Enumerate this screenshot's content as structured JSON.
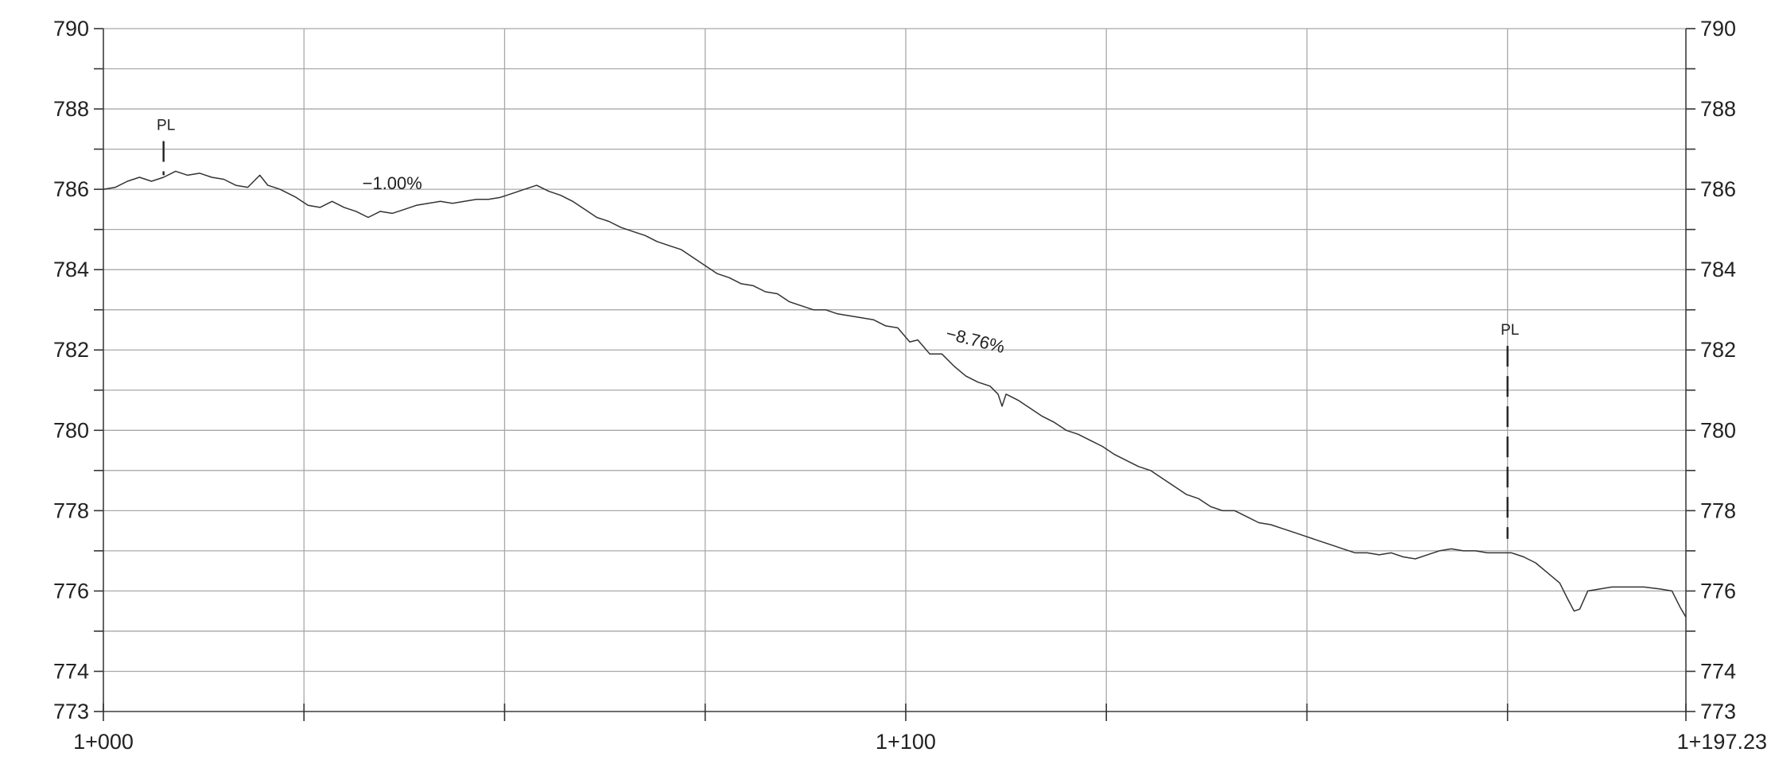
{
  "chart_data": {
    "type": "line",
    "title": "",
    "xlabel": "",
    "ylabel": "",
    "xlim": [
      1000,
      1197.23
    ],
    "ylim": [
      773,
      790
    ],
    "x_grid": [
      1000,
      1025,
      1050,
      1075,
      1100,
      1125,
      1150,
      1175,
      1197.23
    ],
    "x_tick_labels": [
      {
        "x": 1000,
        "label": "1+000"
      },
      {
        "x": 1100,
        "label": "1+100"
      },
      {
        "x": 1197.23,
        "label": "1+197.23"
      }
    ],
    "y_tick_labels": [
      {
        "y": 790,
        "label": "790"
      },
      {
        "y": 788,
        "label": "788"
      },
      {
        "y": 786,
        "label": "786"
      },
      {
        "y": 784,
        "label": "784"
      },
      {
        "y": 782,
        "label": "782"
      },
      {
        "y": 780,
        "label": "780"
      },
      {
        "y": 778,
        "label": "778"
      },
      {
        "y": 776,
        "label": "776"
      },
      {
        "y": 774,
        "label": "774"
      },
      {
        "y": 773,
        "label": "773"
      }
    ],
    "grid": true,
    "series": [
      {
        "points": [
          [
            1000.0,
            786.0
          ],
          [
            1001.5,
            786.05
          ],
          [
            1003.0,
            786.2
          ],
          [
            1004.5,
            786.3
          ],
          [
            1006.0,
            786.2
          ],
          [
            1007.5,
            786.3
          ],
          [
            1009.0,
            786.45
          ],
          [
            1010.5,
            786.35
          ],
          [
            1012.0,
            786.4
          ],
          [
            1013.5,
            786.3
          ],
          [
            1015.0,
            786.25
          ],
          [
            1016.5,
            786.1
          ],
          [
            1018.0,
            786.05
          ],
          [
            1019.5,
            786.35
          ],
          [
            1020.5,
            786.1
          ],
          [
            1022.0,
            786.0
          ],
          [
            1024.0,
            785.8
          ],
          [
            1025.5,
            785.6
          ],
          [
            1027.0,
            785.55
          ],
          [
            1028.5,
            785.7
          ],
          [
            1030.0,
            785.55
          ],
          [
            1031.5,
            785.45
          ],
          [
            1033.0,
            785.3
          ],
          [
            1034.5,
            785.45
          ],
          [
            1036.0,
            785.4
          ],
          [
            1037.5,
            785.5
          ],
          [
            1039.0,
            785.6
          ],
          [
            1040.5,
            785.65
          ],
          [
            1042.0,
            785.7
          ],
          [
            1043.5,
            785.65
          ],
          [
            1045.0,
            785.7
          ],
          [
            1046.5,
            785.75
          ],
          [
            1048.0,
            785.75
          ],
          [
            1049.5,
            785.8
          ],
          [
            1051.0,
            785.9
          ],
          [
            1052.5,
            786.0
          ],
          [
            1054.0,
            786.1
          ],
          [
            1055.5,
            785.95
          ],
          [
            1057.0,
            785.85
          ],
          [
            1058.5,
            785.7
          ],
          [
            1060.0,
            785.5
          ],
          [
            1061.5,
            785.3
          ],
          [
            1063.0,
            785.2
          ],
          [
            1064.5,
            785.05
          ],
          [
            1066.0,
            784.95
          ],
          [
            1067.5,
            784.85
          ],
          [
            1069.0,
            784.7
          ],
          [
            1070.5,
            784.6
          ],
          [
            1072.0,
            784.5
          ],
          [
            1073.5,
            784.3
          ],
          [
            1075.0,
            784.1
          ],
          [
            1076.5,
            783.9
          ],
          [
            1078.0,
            783.8
          ],
          [
            1079.5,
            783.65
          ],
          [
            1081.0,
            783.6
          ],
          [
            1082.5,
            783.45
          ],
          [
            1084.0,
            783.4
          ],
          [
            1085.5,
            783.2
          ],
          [
            1087.0,
            783.1
          ],
          [
            1088.5,
            783.0
          ],
          [
            1090.0,
            783.0
          ],
          [
            1091.5,
            782.9
          ],
          [
            1093.0,
            782.85
          ],
          [
            1094.5,
            782.8
          ],
          [
            1096.0,
            782.75
          ],
          [
            1097.5,
            782.6
          ],
          [
            1099.0,
            782.55
          ],
          [
            1100.5,
            782.2
          ],
          [
            1101.5,
            782.25
          ],
          [
            1103.0,
            781.9
          ],
          [
            1104.5,
            781.9
          ],
          [
            1106.0,
            781.6
          ],
          [
            1107.5,
            781.35
          ],
          [
            1109.0,
            781.2
          ],
          [
            1110.5,
            781.1
          ],
          [
            1111.5,
            780.9
          ],
          [
            1112.0,
            780.6
          ],
          [
            1112.5,
            780.9
          ],
          [
            1114.0,
            780.75
          ],
          [
            1115.5,
            780.55
          ],
          [
            1117.0,
            780.35
          ],
          [
            1118.5,
            780.2
          ],
          [
            1120.0,
            780.0
          ],
          [
            1121.5,
            779.9
          ],
          [
            1123.0,
            779.75
          ],
          [
            1124.5,
            779.6
          ],
          [
            1126.0,
            779.4
          ],
          [
            1127.5,
            779.25
          ],
          [
            1129.0,
            779.1
          ],
          [
            1130.5,
            779.0
          ],
          [
            1132.0,
            778.8
          ],
          [
            1133.5,
            778.6
          ],
          [
            1135.0,
            778.4
          ],
          [
            1136.5,
            778.3
          ],
          [
            1138.0,
            778.1
          ],
          [
            1139.5,
            778.0
          ],
          [
            1141.0,
            778.0
          ],
          [
            1142.5,
            777.85
          ],
          [
            1144.0,
            777.7
          ],
          [
            1145.5,
            777.65
          ],
          [
            1147.0,
            777.55
          ],
          [
            1148.5,
            777.45
          ],
          [
            1150.0,
            777.35
          ],
          [
            1151.5,
            777.25
          ],
          [
            1153.0,
            777.15
          ],
          [
            1154.5,
            777.05
          ],
          [
            1156.0,
            776.95
          ],
          [
            1157.5,
            776.95
          ],
          [
            1159.0,
            776.9
          ],
          [
            1160.5,
            776.95
          ],
          [
            1162.0,
            776.85
          ],
          [
            1163.5,
            776.8
          ],
          [
            1165.0,
            776.9
          ],
          [
            1166.5,
            777.0
          ],
          [
            1168.0,
            777.05
          ],
          [
            1169.5,
            777.0
          ],
          [
            1171.0,
            777.0
          ],
          [
            1172.5,
            776.95
          ],
          [
            1174.0,
            776.95
          ],
          [
            1175.5,
            776.95
          ],
          [
            1177.0,
            776.85
          ],
          [
            1178.5,
            776.7
          ],
          [
            1180.0,
            776.45
          ],
          [
            1181.5,
            776.2
          ],
          [
            1182.5,
            775.8
          ],
          [
            1183.3,
            775.5
          ],
          [
            1184.0,
            775.55
          ],
          [
            1185.0,
            776.0
          ],
          [
            1186.5,
            776.05
          ],
          [
            1188.0,
            776.1
          ],
          [
            1190.0,
            776.1
          ],
          [
            1192.0,
            776.1
          ],
          [
            1194.0,
            776.05
          ],
          [
            1195.5,
            776.0
          ],
          [
            1196.5,
            775.6
          ],
          [
            1197.23,
            775.35
          ]
        ]
      }
    ],
    "annotations": [
      {
        "type": "marker",
        "label": "PL",
        "x": 1007.5,
        "y_top": 787.2,
        "y_bottom": 786.35
      },
      {
        "type": "marker",
        "label": "PL",
        "x": 1175.0,
        "y_top": 782.1,
        "y_bottom": 777.3
      },
      {
        "type": "grade",
        "label": "−1.00%",
        "x": 1036.0,
        "y": 786.0
      },
      {
        "type": "grade",
        "label": "−8.76%",
        "x": 1108.5,
        "y": 782.1
      }
    ]
  }
}
